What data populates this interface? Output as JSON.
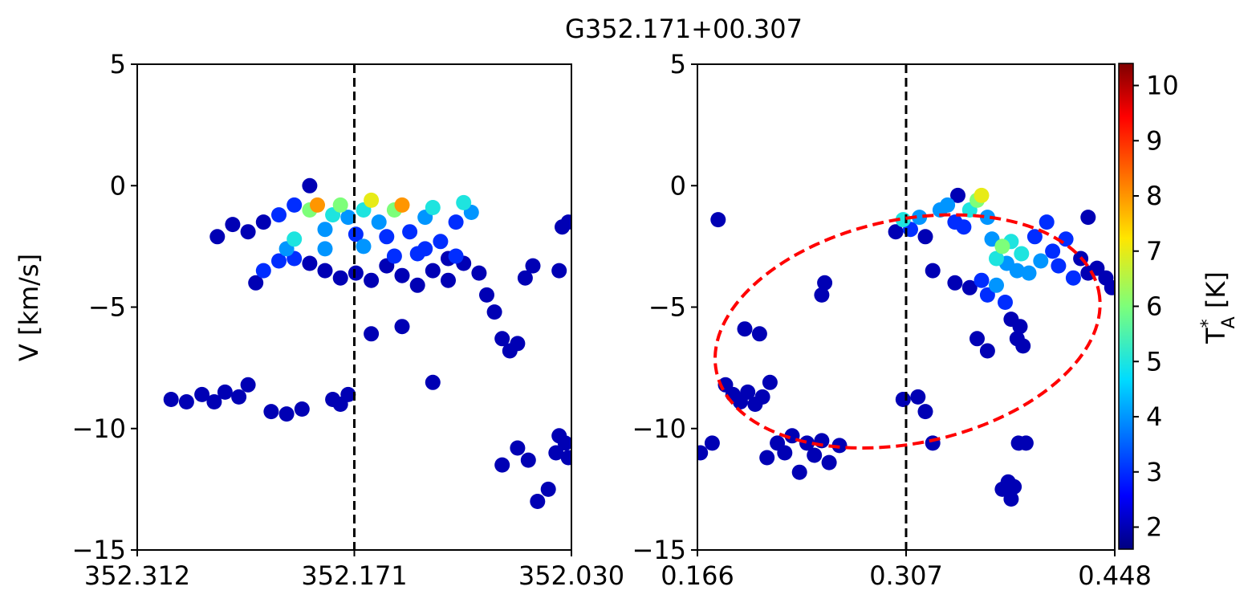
{
  "figure": {
    "title": "G352.171+00.307"
  },
  "chart_data": [
    {
      "type": "scatter",
      "panel": "left",
      "title": "",
      "xlabel": "",
      "ylabel": "V [km/s]",
      "xlim": [
        352.312,
        352.03
      ],
      "ylim": [
        -15,
        5
      ],
      "xticks": [
        352.312,
        352.171,
        352.03
      ],
      "xtick_labels": [
        "352.312",
        "352.171",
        "352.030"
      ],
      "yticks": [
        5,
        0,
        -5,
        -10,
        -15
      ],
      "ytick_labels": [
        "5",
        "0",
        "−5",
        "−10",
        "−15"
      ],
      "vline": {
        "x": 352.171,
        "style": "dashed",
        "color": "#000000"
      },
      "points": [
        [
          352.29,
          -8.8,
          2
        ],
        [
          352.28,
          -8.9,
          2
        ],
        [
          352.27,
          -8.6,
          2
        ],
        [
          352.262,
          -8.9,
          2
        ],
        [
          352.255,
          -8.5,
          2
        ],
        [
          352.246,
          -8.7,
          2
        ],
        [
          352.24,
          -8.2,
          2
        ],
        [
          352.225,
          -9.3,
          2
        ],
        [
          352.215,
          -9.4,
          2
        ],
        [
          352.205,
          -9.2,
          2
        ],
        [
          352.185,
          -8.8,
          2
        ],
        [
          352.18,
          -9.0,
          2
        ],
        [
          352.175,
          -8.6,
          2
        ],
        [
          352.26,
          -2.1,
          2
        ],
        [
          352.25,
          -1.6,
          2
        ],
        [
          352.24,
          -1.9,
          2
        ],
        [
          352.23,
          -1.5,
          2
        ],
        [
          352.22,
          -1.2,
          3
        ],
        [
          352.21,
          -0.8,
          3
        ],
        [
          352.2,
          0.0,
          2
        ],
        [
          352.235,
          -4.0,
          2
        ],
        [
          352.23,
          -3.5,
          3
        ],
        [
          352.22,
          -3.1,
          3
        ],
        [
          352.215,
          -2.6,
          4
        ],
        [
          352.21,
          -2.2,
          5
        ],
        [
          352.2,
          -1.0,
          6
        ],
        [
          352.195,
          -0.8,
          8
        ],
        [
          352.19,
          -1.8,
          4
        ],
        [
          352.185,
          -1.2,
          5
        ],
        [
          352.18,
          -0.8,
          6
        ],
        [
          352.175,
          -1.3,
          4
        ],
        [
          352.17,
          -2.0,
          3
        ],
        [
          352.165,
          -1.0,
          5
        ],
        [
          352.16,
          -0.6,
          7
        ],
        [
          352.155,
          -1.5,
          4
        ],
        [
          352.15,
          -2.1,
          3
        ],
        [
          352.145,
          -1.0,
          6
        ],
        [
          352.14,
          -0.8,
          8
        ],
        [
          352.135,
          -1.9,
          3
        ],
        [
          352.13,
          -2.8,
          3
        ],
        [
          352.125,
          -1.3,
          4
        ],
        [
          352.12,
          -0.9,
          5
        ],
        [
          352.115,
          -2.3,
          3
        ],
        [
          352.11,
          -3.0,
          2
        ],
        [
          352.105,
          -1.5,
          3
        ],
        [
          352.1,
          -0.7,
          5
        ],
        [
          352.095,
          -1.1,
          4
        ],
        [
          352.2,
          -3.2,
          2
        ],
        [
          352.19,
          -3.5,
          2
        ],
        [
          352.18,
          -3.8,
          2
        ],
        [
          352.17,
          -3.6,
          2
        ],
        [
          352.16,
          -3.9,
          2
        ],
        [
          352.15,
          -3.3,
          2
        ],
        [
          352.14,
          -3.7,
          2
        ],
        [
          352.13,
          -4.1,
          2
        ],
        [
          352.12,
          -3.5,
          2
        ],
        [
          352.11,
          -3.9,
          2
        ],
        [
          352.1,
          -3.2,
          2
        ],
        [
          352.09,
          -3.6,
          2
        ],
        [
          352.085,
          -4.5,
          2
        ],
        [
          352.08,
          -5.2,
          2
        ],
        [
          352.075,
          -6.3,
          2
        ],
        [
          352.07,
          -6.8,
          2
        ],
        [
          352.065,
          -6.5,
          2
        ],
        [
          352.06,
          -3.8,
          2
        ],
        [
          352.055,
          -3.3,
          2
        ],
        [
          352.21,
          -3.0,
          3
        ],
        [
          352.19,
          -2.6,
          4
        ],
        [
          352.165,
          -2.5,
          4
        ],
        [
          352.145,
          -2.9,
          3
        ],
        [
          352.125,
          -2.6,
          3
        ],
        [
          352.105,
          -2.9,
          3
        ],
        [
          352.16,
          -6.1,
          2
        ],
        [
          352.14,
          -5.8,
          2
        ],
        [
          352.12,
          -8.1,
          2
        ],
        [
          352.075,
          -11.5,
          2
        ],
        [
          352.065,
          -10.8,
          2
        ],
        [
          352.058,
          -11.3,
          2
        ],
        [
          352.052,
          -13.0,
          2
        ],
        [
          352.045,
          -12.5,
          2
        ],
        [
          352.04,
          -11.0,
          2
        ],
        [
          352.038,
          -10.3,
          2
        ],
        [
          352.034,
          -10.6,
          2
        ],
        [
          352.032,
          -11.2,
          2
        ],
        [
          352.036,
          -1.7,
          2
        ],
        [
          352.032,
          -1.5,
          2
        ],
        [
          352.038,
          -3.5,
          2
        ]
      ]
    },
    {
      "type": "scatter",
      "panel": "right",
      "title": "",
      "xlabel": "",
      "ylabel": "",
      "xlim": [
        0.166,
        0.448
      ],
      "ylim": [
        -15,
        5
      ],
      "xticks": [
        0.166,
        0.307,
        0.448
      ],
      "xtick_labels": [
        "0.166",
        "0.307",
        "0.448"
      ],
      "yticks": [
        5,
        0,
        -5,
        -10,
        -15
      ],
      "ytick_labels": [
        "5",
        "0",
        "−5",
        "−10",
        "−15"
      ],
      "vline": {
        "x": 0.307,
        "style": "dashed",
        "color": "#000000"
      },
      "ellipse": {
        "cx": 0.308,
        "cy": -6.0,
        "rx": 0.132,
        "ry": 4.6,
        "angle_deg": -12,
        "color": "#ff0000",
        "style": "dashed"
      },
      "points": [
        [
          0.168,
          -11.0,
          2
        ],
        [
          0.176,
          -10.6,
          2
        ],
        [
          0.18,
          -1.4,
          2
        ],
        [
          0.185,
          -8.2,
          2
        ],
        [
          0.19,
          -8.6,
          2
        ],
        [
          0.195,
          -8.9,
          2
        ],
        [
          0.2,
          -8.5,
          2
        ],
        [
          0.205,
          -9.0,
          2
        ],
        [
          0.21,
          -8.7,
          2
        ],
        [
          0.215,
          -8.1,
          2
        ],
        [
          0.198,
          -5.9,
          2
        ],
        [
          0.208,
          -6.1,
          2
        ],
        [
          0.213,
          -11.2,
          2
        ],
        [
          0.22,
          -10.6,
          2
        ],
        [
          0.225,
          -11.0,
          2
        ],
        [
          0.23,
          -10.3,
          2
        ],
        [
          0.235,
          -11.8,
          2
        ],
        [
          0.24,
          -10.6,
          2
        ],
        [
          0.245,
          -11.1,
          2
        ],
        [
          0.25,
          -10.5,
          2
        ],
        [
          0.255,
          -11.4,
          2
        ],
        [
          0.262,
          -10.7,
          2
        ],
        [
          0.25,
          -4.5,
          2
        ],
        [
          0.252,
          -4.0,
          2
        ],
        [
          0.3,
          -1.9,
          2
        ],
        [
          0.305,
          -1.4,
          5
        ],
        [
          0.31,
          -1.8,
          3
        ],
        [
          0.316,
          -1.3,
          4
        ],
        [
          0.32,
          -2.1,
          2
        ],
        [
          0.305,
          -8.8,
          2
        ],
        [
          0.315,
          -8.7,
          2
        ],
        [
          0.32,
          -9.3,
          2
        ],
        [
          0.325,
          -10.6,
          2
        ],
        [
          0.325,
          -3.5,
          2
        ],
        [
          0.33,
          -1.0,
          4
        ],
        [
          0.335,
          -0.8,
          4
        ],
        [
          0.34,
          -1.5,
          3
        ],
        [
          0.342,
          -0.4,
          2
        ],
        [
          0.346,
          -1.7,
          3
        ],
        [
          0.35,
          -1.0,
          5
        ],
        [
          0.355,
          -0.6,
          6
        ],
        [
          0.358,
          -0.4,
          7
        ],
        [
          0.362,
          -1.3,
          4
        ],
        [
          0.365,
          -2.2,
          4
        ],
        [
          0.368,
          -3.0,
          5
        ],
        [
          0.372,
          -2.5,
          6
        ],
        [
          0.375,
          -3.2,
          4
        ],
        [
          0.378,
          -2.3,
          5
        ],
        [
          0.382,
          -3.5,
          4
        ],
        [
          0.385,
          -2.8,
          5
        ],
        [
          0.39,
          -3.6,
          4
        ],
        [
          0.394,
          -2.1,
          3
        ],
        [
          0.398,
          -3.1,
          4
        ],
        [
          0.402,
          -1.5,
          3
        ],
        [
          0.406,
          -2.7,
          3
        ],
        [
          0.41,
          -3.3,
          3
        ],
        [
          0.415,
          -2.2,
          3
        ],
        [
          0.42,
          -3.8,
          3
        ],
        [
          0.425,
          -3.0,
          2
        ],
        [
          0.43,
          -3.6,
          2
        ],
        [
          0.436,
          -3.4,
          2
        ],
        [
          0.442,
          -3.8,
          2
        ],
        [
          0.446,
          -4.2,
          2
        ],
        [
          0.43,
          -1.3,
          2
        ],
        [
          0.34,
          -4.0,
          2
        ],
        [
          0.35,
          -4.2,
          2
        ],
        [
          0.358,
          -3.9,
          3
        ],
        [
          0.362,
          -4.5,
          3
        ],
        [
          0.368,
          -4.1,
          4
        ],
        [
          0.374,
          -4.8,
          3
        ],
        [
          0.378,
          -5.5,
          2
        ],
        [
          0.382,
          -6.3,
          2
        ],
        [
          0.384,
          -5.8,
          2
        ],
        [
          0.386,
          -6.6,
          2
        ],
        [
          0.362,
          -6.8,
          2
        ],
        [
          0.355,
          -6.3,
          2
        ],
        [
          0.372,
          -12.5,
          2
        ],
        [
          0.378,
          -12.9,
          2
        ],
        [
          0.38,
          -12.4,
          2
        ],
        [
          0.383,
          -10.6,
          2
        ],
        [
          0.388,
          -10.6,
          2
        ],
        [
          0.376,
          -12.2,
          2
        ]
      ]
    }
  ],
  "colorbar": {
    "label": "T*A [K]",
    "label_base": "T",
    "label_sup": "*",
    "label_sub": "A",
    "label_unit": " [K]",
    "min": 1.6,
    "max": 10.4,
    "ticks": [
      2,
      3,
      4,
      5,
      6,
      7,
      8,
      9,
      10
    ],
    "tick_labels": [
      "2",
      "3",
      "4",
      "5",
      "6",
      "7",
      "8",
      "9",
      "10"
    ],
    "colormap": "jet"
  }
}
